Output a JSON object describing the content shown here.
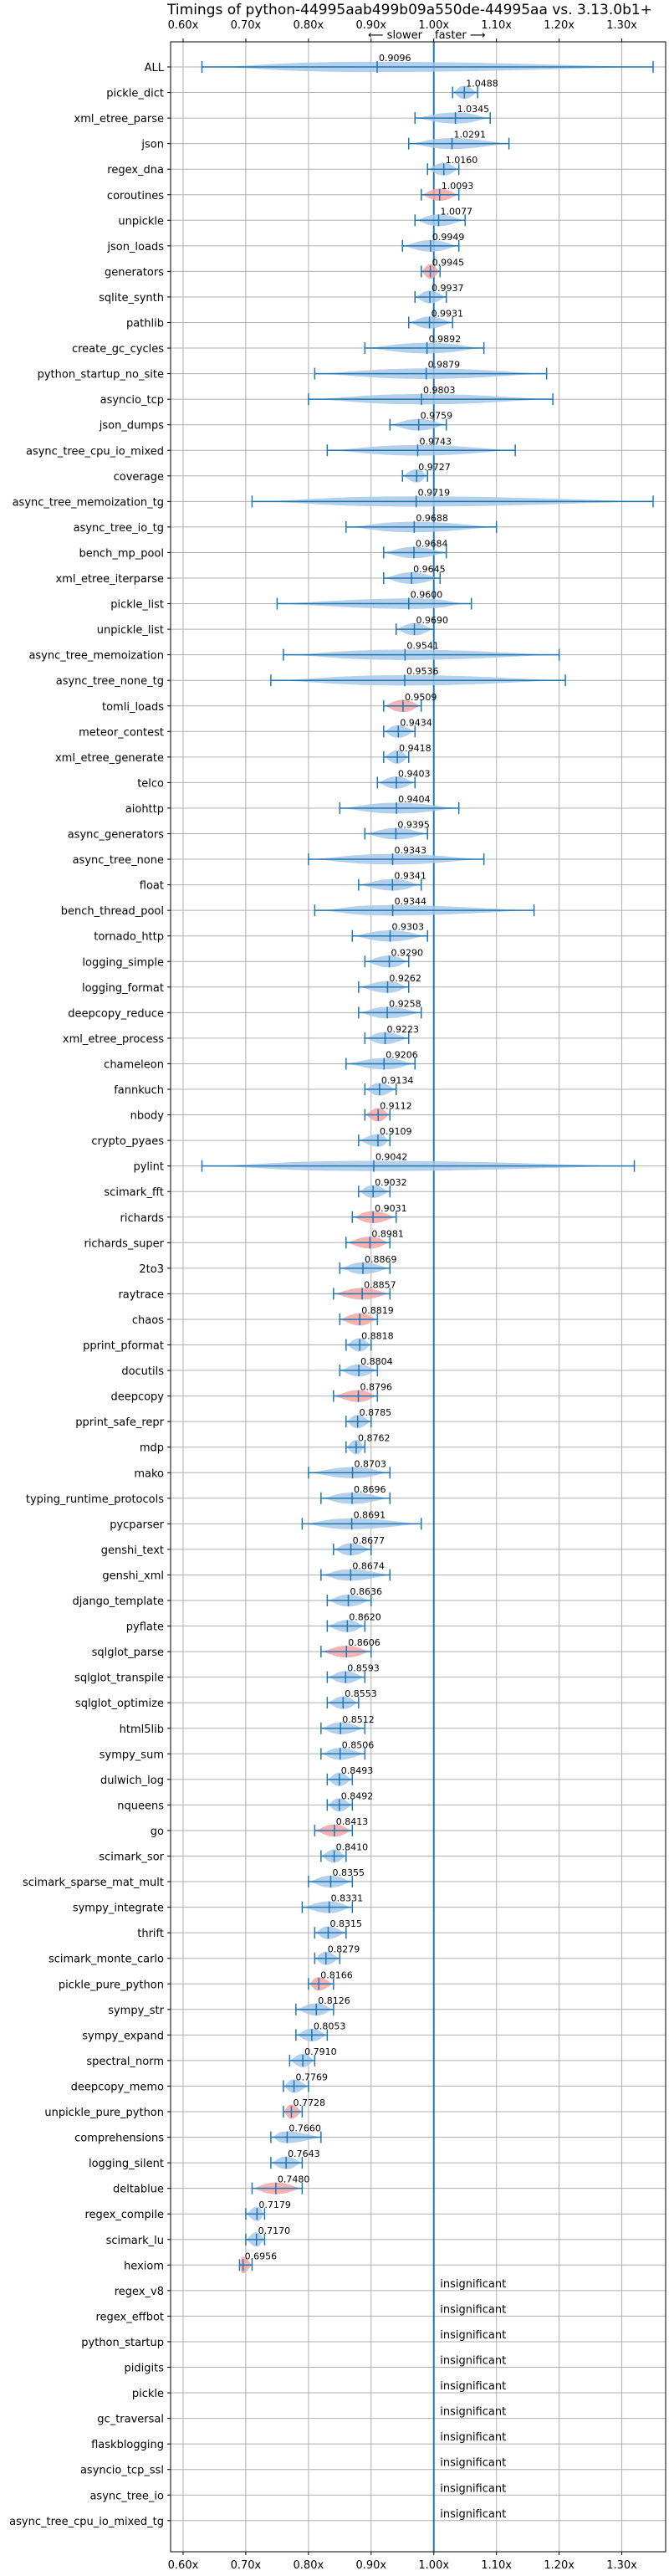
{
  "chart_data": {
    "type": "violin",
    "title": "Timings of python-44995aab499b09a550de-44995aa vs. 3.13.0b1+",
    "direction_labels": {
      "slower": "⟵ slower",
      "faster": "faster ⟶"
    },
    "xlim": [
      0.58,
      1.37
    ],
    "xticks": [
      0.6,
      0.7,
      0.8,
      0.9,
      1.0,
      1.1,
      1.2,
      1.3
    ],
    "xtick_labels": [
      "0.60x",
      "0.70x",
      "0.80x",
      "0.90x",
      "1.00x",
      "1.10x",
      "1.20x",
      "1.30x"
    ],
    "reference_line": 1.0,
    "insignificant_label": "insignificant",
    "colors": {
      "normal": "#a7c8e6",
      "slower": "#f4a3a3",
      "line": "#1f77b4",
      "grid": "#b0b0b0"
    },
    "benchmarks": [
      {
        "name": "ALL",
        "mean": 0.9096,
        "min": 0.63,
        "max": 1.35,
        "slower": false
      },
      {
        "name": "pickle_dict",
        "mean": 1.0488,
        "min": 1.03,
        "max": 1.07,
        "slower": false
      },
      {
        "name": "xml_etree_parse",
        "mean": 1.0345,
        "min": 0.97,
        "max": 1.09,
        "slower": false
      },
      {
        "name": "json",
        "mean": 1.0291,
        "min": 0.96,
        "max": 1.12,
        "slower": false
      },
      {
        "name": "regex_dna",
        "mean": 1.016,
        "min": 0.99,
        "max": 1.04,
        "slower": false
      },
      {
        "name": "coroutines",
        "mean": 1.0093,
        "min": 0.98,
        "max": 1.04,
        "slower": true
      },
      {
        "name": "unpickle",
        "mean": 1.0077,
        "min": 0.97,
        "max": 1.05,
        "slower": false
      },
      {
        "name": "json_loads",
        "mean": 0.9949,
        "min": 0.95,
        "max": 1.04,
        "slower": false
      },
      {
        "name": "generators",
        "mean": 0.9945,
        "min": 0.98,
        "max": 1.01,
        "slower": true
      },
      {
        "name": "sqlite_synth",
        "mean": 0.9937,
        "min": 0.97,
        "max": 1.02,
        "slower": false
      },
      {
        "name": "pathlib",
        "mean": 0.9931,
        "min": 0.96,
        "max": 1.03,
        "slower": false
      },
      {
        "name": "create_gc_cycles",
        "mean": 0.9892,
        "min": 0.89,
        "max": 1.08,
        "slower": false
      },
      {
        "name": "python_startup_no_site",
        "mean": 0.9879,
        "min": 0.81,
        "max": 1.18,
        "slower": false
      },
      {
        "name": "asyncio_tcp",
        "mean": 0.9803,
        "min": 0.8,
        "max": 1.19,
        "slower": false
      },
      {
        "name": "json_dumps",
        "mean": 0.9759,
        "min": 0.93,
        "max": 1.02,
        "slower": false
      },
      {
        "name": "async_tree_cpu_io_mixed",
        "mean": 0.9743,
        "min": 0.83,
        "max": 1.13,
        "slower": false
      },
      {
        "name": "coverage",
        "mean": 0.9727,
        "min": 0.95,
        "max": 0.99,
        "slower": false
      },
      {
        "name": "async_tree_memoization_tg",
        "mean": 0.9719,
        "min": 0.71,
        "max": 1.35,
        "slower": false
      },
      {
        "name": "async_tree_io_tg",
        "mean": 0.9688,
        "min": 0.86,
        "max": 1.1,
        "slower": false
      },
      {
        "name": "bench_mp_pool",
        "mean": 0.9684,
        "min": 0.92,
        "max": 1.02,
        "slower": false
      },
      {
        "name": "xml_etree_iterparse",
        "mean": 0.9645,
        "min": 0.92,
        "max": 1.01,
        "slower": false
      },
      {
        "name": "pickle_list",
        "mean": 0.96,
        "min": 0.75,
        "max": 1.06,
        "slower": false
      },
      {
        "name": "unpickle_list",
        "mean": 0.969,
        "min": 0.94,
        "max": 1.0,
        "slower": false
      },
      {
        "name": "async_tree_memoization",
        "mean": 0.9541,
        "min": 0.76,
        "max": 1.2,
        "slower": false
      },
      {
        "name": "async_tree_none_tg",
        "mean": 0.9536,
        "min": 0.74,
        "max": 1.21,
        "slower": false
      },
      {
        "name": "tomli_loads",
        "mean": 0.9509,
        "min": 0.92,
        "max": 0.98,
        "slower": true
      },
      {
        "name": "meteor_contest",
        "mean": 0.9434,
        "min": 0.92,
        "max": 0.97,
        "slower": false
      },
      {
        "name": "xml_etree_generate",
        "mean": 0.9418,
        "min": 0.92,
        "max": 0.96,
        "slower": false
      },
      {
        "name": "telco",
        "mean": 0.9403,
        "min": 0.91,
        "max": 0.97,
        "slower": false
      },
      {
        "name": "aiohttp",
        "mean": 0.9404,
        "min": 0.85,
        "max": 1.04,
        "slower": false
      },
      {
        "name": "async_generators",
        "mean": 0.9395,
        "min": 0.89,
        "max": 0.99,
        "slower": false
      },
      {
        "name": "async_tree_none",
        "mean": 0.9343,
        "min": 0.8,
        "max": 1.08,
        "slower": false
      },
      {
        "name": "float",
        "mean": 0.9341,
        "min": 0.88,
        "max": 0.98,
        "slower": false
      },
      {
        "name": "bench_thread_pool",
        "mean": 0.9344,
        "min": 0.81,
        "max": 1.16,
        "slower": false
      },
      {
        "name": "tornado_http",
        "mean": 0.9303,
        "min": 0.87,
        "max": 0.99,
        "slower": false
      },
      {
        "name": "logging_simple",
        "mean": 0.929,
        "min": 0.89,
        "max": 0.96,
        "slower": false
      },
      {
        "name": "logging_format",
        "mean": 0.9262,
        "min": 0.88,
        "max": 0.96,
        "slower": false
      },
      {
        "name": "deepcopy_reduce",
        "mean": 0.9258,
        "min": 0.88,
        "max": 0.98,
        "slower": false
      },
      {
        "name": "xml_etree_process",
        "mean": 0.9223,
        "min": 0.89,
        "max": 0.96,
        "slower": false
      },
      {
        "name": "chameleon",
        "mean": 0.9206,
        "min": 0.86,
        "max": 0.97,
        "slower": false
      },
      {
        "name": "fannkuch",
        "mean": 0.9134,
        "min": 0.89,
        "max": 0.94,
        "slower": false
      },
      {
        "name": "nbody",
        "mean": 0.9112,
        "min": 0.89,
        "max": 0.93,
        "slower": true
      },
      {
        "name": "crypto_pyaes",
        "mean": 0.9109,
        "min": 0.88,
        "max": 0.93,
        "slower": false
      },
      {
        "name": "pylint",
        "mean": 0.9042,
        "min": 0.63,
        "max": 1.32,
        "slower": false
      },
      {
        "name": "scimark_fft",
        "mean": 0.9032,
        "min": 0.88,
        "max": 0.93,
        "slower": false
      },
      {
        "name": "richards",
        "mean": 0.9031,
        "min": 0.87,
        "max": 0.94,
        "slower": true
      },
      {
        "name": "richards_super",
        "mean": 0.8981,
        "min": 0.86,
        "max": 0.93,
        "slower": true
      },
      {
        "name": "2to3",
        "mean": 0.8869,
        "min": 0.85,
        "max": 0.93,
        "slower": false
      },
      {
        "name": "raytrace",
        "mean": 0.8857,
        "min": 0.84,
        "max": 0.93,
        "slower": true
      },
      {
        "name": "chaos",
        "mean": 0.8819,
        "min": 0.85,
        "max": 0.91,
        "slower": true
      },
      {
        "name": "pprint_pformat",
        "mean": 0.8818,
        "min": 0.86,
        "max": 0.9,
        "slower": false
      },
      {
        "name": "docutils",
        "mean": 0.8804,
        "min": 0.85,
        "max": 0.91,
        "slower": false
      },
      {
        "name": "deepcopy",
        "mean": 0.8796,
        "min": 0.84,
        "max": 0.91,
        "slower": true
      },
      {
        "name": "pprint_safe_repr",
        "mean": 0.8785,
        "min": 0.86,
        "max": 0.9,
        "slower": false
      },
      {
        "name": "mdp",
        "mean": 0.8762,
        "min": 0.86,
        "max": 0.89,
        "slower": false
      },
      {
        "name": "mako",
        "mean": 0.8703,
        "min": 0.8,
        "max": 0.93,
        "slower": false
      },
      {
        "name": "typing_runtime_protocols",
        "mean": 0.8696,
        "min": 0.82,
        "max": 0.93,
        "slower": false
      },
      {
        "name": "pycparser",
        "mean": 0.8691,
        "min": 0.79,
        "max": 0.98,
        "slower": false
      },
      {
        "name": "genshi_text",
        "mean": 0.8677,
        "min": 0.84,
        "max": 0.9,
        "slower": false
      },
      {
        "name": "genshi_xml",
        "mean": 0.8674,
        "min": 0.82,
        "max": 0.93,
        "slower": false
      },
      {
        "name": "django_template",
        "mean": 0.8636,
        "min": 0.83,
        "max": 0.9,
        "slower": false
      },
      {
        "name": "pyflate",
        "mean": 0.862,
        "min": 0.83,
        "max": 0.89,
        "slower": false
      },
      {
        "name": "sqlglot_parse",
        "mean": 0.8606,
        "min": 0.82,
        "max": 0.9,
        "slower": true
      },
      {
        "name": "sqlglot_transpile",
        "mean": 0.8593,
        "min": 0.83,
        "max": 0.89,
        "slower": false
      },
      {
        "name": "sqlglot_optimize",
        "mean": 0.8553,
        "min": 0.83,
        "max": 0.88,
        "slower": false
      },
      {
        "name": "html5lib",
        "mean": 0.8512,
        "min": 0.82,
        "max": 0.89,
        "slower": false
      },
      {
        "name": "sympy_sum",
        "mean": 0.8506,
        "min": 0.82,
        "max": 0.89,
        "slower": false
      },
      {
        "name": "dulwich_log",
        "mean": 0.8493,
        "min": 0.83,
        "max": 0.87,
        "slower": false
      },
      {
        "name": "nqueens",
        "mean": 0.8492,
        "min": 0.83,
        "max": 0.87,
        "slower": false
      },
      {
        "name": "go",
        "mean": 0.8413,
        "min": 0.81,
        "max": 0.87,
        "slower": true
      },
      {
        "name": "scimark_sor",
        "mean": 0.841,
        "min": 0.82,
        "max": 0.86,
        "slower": false
      },
      {
        "name": "scimark_sparse_mat_mult",
        "mean": 0.8355,
        "min": 0.8,
        "max": 0.87,
        "slower": false
      },
      {
        "name": "sympy_integrate",
        "mean": 0.8331,
        "min": 0.79,
        "max": 0.87,
        "slower": false
      },
      {
        "name": "thrift",
        "mean": 0.8315,
        "min": 0.81,
        "max": 0.86,
        "slower": false
      },
      {
        "name": "scimark_monte_carlo",
        "mean": 0.8279,
        "min": 0.81,
        "max": 0.85,
        "slower": false
      },
      {
        "name": "pickle_pure_python",
        "mean": 0.8166,
        "min": 0.8,
        "max": 0.84,
        "slower": true
      },
      {
        "name": "sympy_str",
        "mean": 0.8126,
        "min": 0.78,
        "max": 0.84,
        "slower": false
      },
      {
        "name": "sympy_expand",
        "mean": 0.8053,
        "min": 0.78,
        "max": 0.83,
        "slower": false
      },
      {
        "name": "spectral_norm",
        "mean": 0.791,
        "min": 0.77,
        "max": 0.81,
        "slower": false
      },
      {
        "name": "deepcopy_memo",
        "mean": 0.7769,
        "min": 0.76,
        "max": 0.8,
        "slower": false
      },
      {
        "name": "unpickle_pure_python",
        "mean": 0.7728,
        "min": 0.76,
        "max": 0.79,
        "slower": true
      },
      {
        "name": "comprehensions",
        "mean": 0.766,
        "min": 0.74,
        "max": 0.82,
        "slower": false
      },
      {
        "name": "logging_silent",
        "mean": 0.7643,
        "min": 0.74,
        "max": 0.79,
        "slower": false
      },
      {
        "name": "deltablue",
        "mean": 0.748,
        "min": 0.71,
        "max": 0.79,
        "slower": true
      },
      {
        "name": "regex_compile",
        "mean": 0.7179,
        "min": 0.7,
        "max": 0.73,
        "slower": false
      },
      {
        "name": "scimark_lu",
        "mean": 0.717,
        "min": 0.7,
        "max": 0.73,
        "slower": false
      },
      {
        "name": "hexiom",
        "mean": 0.6956,
        "min": 0.69,
        "max": 0.71,
        "slower": true
      },
      {
        "name": "regex_v8",
        "mean": null
      },
      {
        "name": "regex_effbot",
        "mean": null
      },
      {
        "name": "python_startup",
        "mean": null
      },
      {
        "name": "pidigits",
        "mean": null
      },
      {
        "name": "pickle",
        "mean": null
      },
      {
        "name": "gc_traversal",
        "mean": null
      },
      {
        "name": "flaskblogging",
        "mean": null
      },
      {
        "name": "asyncio_tcp_ssl",
        "mean": null
      },
      {
        "name": "async_tree_io",
        "mean": null
      },
      {
        "name": "async_tree_cpu_io_mixed_tg",
        "mean": null
      }
    ]
  }
}
